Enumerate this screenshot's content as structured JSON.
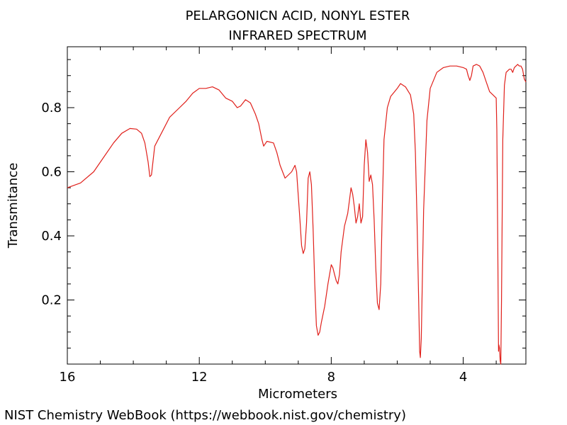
{
  "chart_data": {
    "type": "line",
    "title": "PELARGONICN ACID, NONYL ESTER",
    "subtitle": "INFRARED SPECTRUM",
    "xlabel": "Micrometers",
    "ylabel": "Transmitance",
    "xlim": [
      16,
      2.1
    ],
    "ylim": [
      0.0,
      0.99
    ],
    "x_ticks": [
      16,
      12,
      8,
      4
    ],
    "x_tick_labels": [
      "16",
      "12",
      "8",
      "4"
    ],
    "y_ticks": [
      0.2,
      0.4,
      0.6,
      0.8
    ],
    "y_tick_labels": [
      "0.2",
      "0.4",
      "0.6",
      "0.8"
    ],
    "grid": false,
    "series": [
      {
        "color": "#e0201b",
        "points": [
          [
            16.0,
            0.55
          ],
          [
            15.6,
            0.565
          ],
          [
            15.2,
            0.6
          ],
          [
            14.9,
            0.645
          ],
          [
            14.6,
            0.69
          ],
          [
            14.35,
            0.72
          ],
          [
            14.1,
            0.735
          ],
          [
            13.9,
            0.733
          ],
          [
            13.75,
            0.72
          ],
          [
            13.65,
            0.69
          ],
          [
            13.55,
            0.63
          ],
          [
            13.5,
            0.585
          ],
          [
            13.45,
            0.59
          ],
          [
            13.35,
            0.68
          ],
          [
            13.1,
            0.73
          ],
          [
            12.9,
            0.77
          ],
          [
            12.6,
            0.8
          ],
          [
            12.4,
            0.82
          ],
          [
            12.2,
            0.845
          ],
          [
            12.0,
            0.86
          ],
          [
            11.8,
            0.86
          ],
          [
            11.6,
            0.865
          ],
          [
            11.4,
            0.855
          ],
          [
            11.2,
            0.83
          ],
          [
            11.0,
            0.82
          ],
          [
            10.85,
            0.8
          ],
          [
            10.75,
            0.805
          ],
          [
            10.6,
            0.825
          ],
          [
            10.45,
            0.815
          ],
          [
            10.3,
            0.78
          ],
          [
            10.2,
            0.75
          ],
          [
            10.1,
            0.7
          ],
          [
            10.05,
            0.68
          ],
          [
            9.95,
            0.695
          ],
          [
            9.75,
            0.69
          ],
          [
            9.65,
            0.66
          ],
          [
            9.55,
            0.62
          ],
          [
            9.4,
            0.58
          ],
          [
            9.3,
            0.59
          ],
          [
            9.2,
            0.6
          ],
          [
            9.1,
            0.62
          ],
          [
            9.05,
            0.6
          ],
          [
            8.95,
            0.45
          ],
          [
            8.9,
            0.37
          ],
          [
            8.85,
            0.345
          ],
          [
            8.8,
            0.36
          ],
          [
            8.75,
            0.44
          ],
          [
            8.7,
            0.58
          ],
          [
            8.65,
            0.6
          ],
          [
            8.6,
            0.56
          ],
          [
            8.55,
            0.42
          ],
          [
            8.5,
            0.25
          ],
          [
            8.45,
            0.12
          ],
          [
            8.4,
            0.09
          ],
          [
            8.35,
            0.1
          ],
          [
            8.3,
            0.13
          ],
          [
            8.2,
            0.18
          ],
          [
            8.1,
            0.25
          ],
          [
            8.0,
            0.31
          ],
          [
            7.95,
            0.3
          ],
          [
            7.9,
            0.28
          ],
          [
            7.85,
            0.26
          ],
          [
            7.8,
            0.25
          ],
          [
            7.75,
            0.28
          ],
          [
            7.7,
            0.35
          ],
          [
            7.6,
            0.43
          ],
          [
            7.5,
            0.47
          ],
          [
            7.45,
            0.51
          ],
          [
            7.4,
            0.55
          ],
          [
            7.35,
            0.53
          ],
          [
            7.3,
            0.49
          ],
          [
            7.25,
            0.44
          ],
          [
            7.2,
            0.46
          ],
          [
            7.15,
            0.5
          ],
          [
            7.1,
            0.44
          ],
          [
            7.05,
            0.46
          ],
          [
            7.0,
            0.62
          ],
          [
            6.95,
            0.7
          ],
          [
            6.9,
            0.66
          ],
          [
            6.85,
            0.57
          ],
          [
            6.8,
            0.59
          ],
          [
            6.75,
            0.56
          ],
          [
            6.7,
            0.45
          ],
          [
            6.65,
            0.3
          ],
          [
            6.6,
            0.19
          ],
          [
            6.55,
            0.17
          ],
          [
            6.5,
            0.25
          ],
          [
            6.45,
            0.5
          ],
          [
            6.4,
            0.7
          ],
          [
            6.3,
            0.8
          ],
          [
            6.2,
            0.835
          ],
          [
            6.0,
            0.86
          ],
          [
            5.9,
            0.875
          ],
          [
            5.75,
            0.865
          ],
          [
            5.6,
            0.84
          ],
          [
            5.5,
            0.78
          ],
          [
            5.45,
            0.66
          ],
          [
            5.4,
            0.45
          ],
          [
            5.35,
            0.2
          ],
          [
            5.32,
            0.04
          ],
          [
            5.3,
            0.02
          ],
          [
            5.27,
            0.08
          ],
          [
            5.2,
            0.48
          ],
          [
            5.1,
            0.76
          ],
          [
            5.0,
            0.86
          ],
          [
            4.8,
            0.91
          ],
          [
            4.6,
            0.925
          ],
          [
            4.4,
            0.93
          ],
          [
            4.2,
            0.93
          ],
          [
            4.0,
            0.925
          ],
          [
            3.9,
            0.92
          ],
          [
            3.85,
            0.9
          ],
          [
            3.8,
            0.885
          ],
          [
            3.75,
            0.9
          ],
          [
            3.7,
            0.93
          ],
          [
            3.6,
            0.935
          ],
          [
            3.5,
            0.93
          ],
          [
            3.4,
            0.91
          ],
          [
            3.3,
            0.88
          ],
          [
            3.2,
            0.85
          ],
          [
            3.1,
            0.84
          ],
          [
            3.0,
            0.83
          ],
          [
            2.98,
            0.73
          ],
          [
            2.95,
            0.35
          ],
          [
            2.93,
            0.04
          ],
          [
            2.92,
            0.06
          ],
          [
            2.9,
            0.05
          ],
          [
            2.88,
            0.01
          ],
          [
            2.86,
            0.0
          ],
          [
            2.84,
            0.2
          ],
          [
            2.8,
            0.7
          ],
          [
            2.75,
            0.87
          ],
          [
            2.7,
            0.91
          ],
          [
            2.6,
            0.92
          ],
          [
            2.55,
            0.92
          ],
          [
            2.5,
            0.91
          ],
          [
            2.45,
            0.925
          ],
          [
            2.4,
            0.93
          ],
          [
            2.35,
            0.935
          ],
          [
            2.3,
            0.93
          ],
          [
            2.25,
            0.93
          ],
          [
            2.2,
            0.92
          ],
          [
            2.15,
            0.89
          ],
          [
            2.1,
            0.88
          ],
          [
            2.05,
            0.89
          ],
          [
            2.0,
            0.93
          ],
          [
            1.98,
            0.975
          ],
          [
            1.95,
            0.985
          ],
          [
            1.9,
            0.99
          ],
          [
            1.85,
            0.99
          ]
        ]
      }
    ]
  },
  "footer_text": "NIST Chemistry WebBook (https://webbook.nist.gov/chemistry)"
}
